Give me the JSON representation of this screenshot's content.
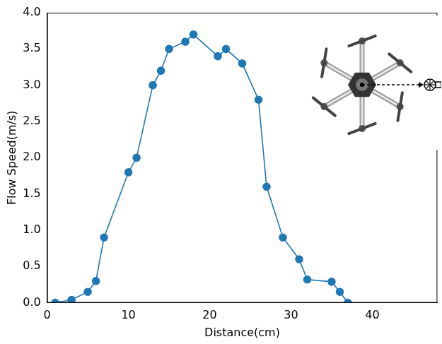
{
  "chart_data": {
    "type": "line",
    "x_label": "Distance(cm)",
    "y_label": "Flow Speed(m/s)",
    "series": [
      {
        "name": "Flow Speed",
        "color": "#1f77b4",
        "marker": "circle",
        "line_style": "solid",
        "x": [
          1,
          3,
          5,
          6,
          7,
          10,
          11,
          13,
          14,
          15,
          17,
          18,
          21,
          22,
          24,
          26,
          27,
          29,
          31,
          32,
          35,
          36,
          37
        ],
        "values": [
          0.0,
          0.04,
          0.15,
          0.3,
          0.9,
          1.8,
          2.0,
          3.0,
          3.2,
          3.5,
          3.6,
          3.7,
          3.4,
          3.5,
          3.3,
          2.8,
          1.6,
          0.9,
          0.6,
          0.32,
          0.29,
          0.15,
          0.0
        ]
      }
    ],
    "xlim": [
      0,
      48
    ],
    "xticks": [
      0,
      10,
      20,
      30,
      40
    ],
    "ylim": [
      0,
      4
    ],
    "yticks": [
      {
        "value": 0,
        "label": "0.0"
      },
      0.5,
      {
        "value": 1,
        "label": "1.0"
      },
      1.5,
      {
        "value": 2,
        "label": "2.0"
      },
      2.5,
      {
        "value": 3,
        "label": "3.0"
      },
      3.5,
      {
        "value": 4,
        "label": "4.0"
      }
    ],
    "grid": false
  }
}
